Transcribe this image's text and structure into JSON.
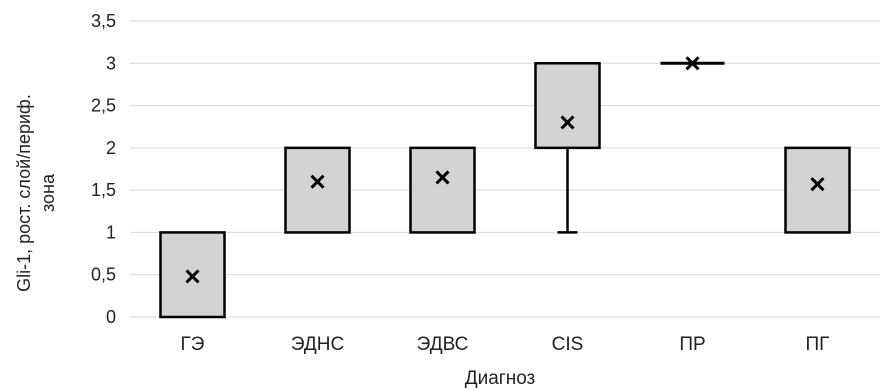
{
  "chart_data": {
    "type": "box",
    "title": "",
    "xlabel": "Диагноз",
    "ylabel_line1": "Gli-1, рост. слой/периф.",
    "ylabel_line2": "зона",
    "ylim": [
      0,
      3.5
    ],
    "yticks": [
      {
        "value": 0,
        "label": "0"
      },
      {
        "value": 0.5,
        "label": "0,5"
      },
      {
        "value": 1,
        "label": "1"
      },
      {
        "value": 1.5,
        "label": "1,5"
      },
      {
        "value": 2,
        "label": "2"
      },
      {
        "value": 2.5,
        "label": "2,5"
      },
      {
        "value": 3,
        "label": "3"
      },
      {
        "value": 3.5,
        "label": "3,5"
      }
    ],
    "grid": true,
    "categories": [
      "ГЭ",
      "ЭДНС",
      "ЭДВС",
      "CIS",
      "ПР",
      "ПГ"
    ],
    "boxes": [
      {
        "category": "ГЭ",
        "min": 0,
        "q1": 0,
        "median": 1,
        "q3": 1,
        "max": 1,
        "mean": 0.48
      },
      {
        "category": "ЭДНС",
        "min": 1,
        "q1": 1,
        "median": 2,
        "q3": 2,
        "max": 2,
        "mean": 1.6
      },
      {
        "category": "ЭДВС",
        "min": 1,
        "q1": 1,
        "median": 2,
        "q3": 2,
        "max": 2,
        "mean": 1.65
      },
      {
        "category": "CIS",
        "min": 1,
        "q1": 2,
        "median": 3,
        "q3": 3,
        "max": 3,
        "mean": 2.3
      },
      {
        "category": "ПР",
        "min": 3,
        "q1": 3,
        "median": 3,
        "q3": 3,
        "max": 3,
        "mean": 3.0
      },
      {
        "category": "ПГ",
        "min": 1,
        "q1": 1,
        "median": 2,
        "q3": 2,
        "max": 2,
        "mean": 1.57
      }
    ],
    "colors": {
      "box_fill": "#d3d3d3",
      "box_stroke": "#000000",
      "grid": "#d9d9d9",
      "text": "#222222"
    }
  }
}
